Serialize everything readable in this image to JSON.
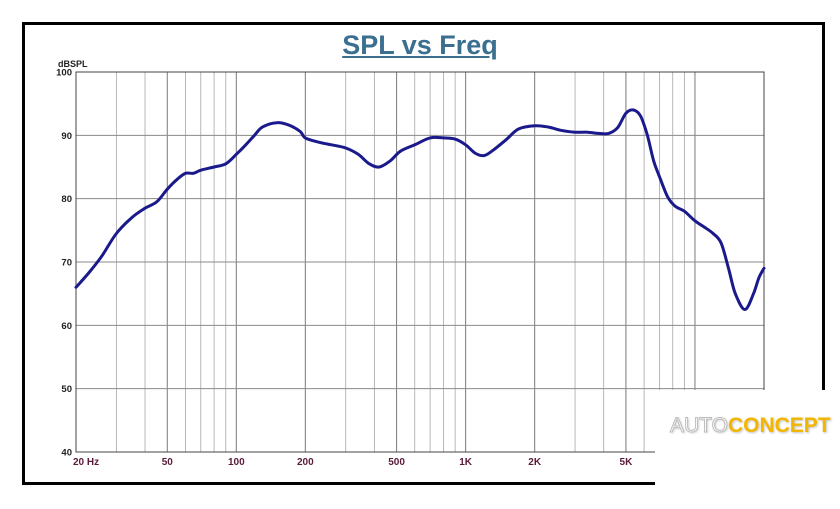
{
  "chart_data": {
    "type": "line",
    "title": "SPL vs Freq",
    "ylabel": "dBSPL",
    "xlabel": "",
    "x_scale": "log",
    "xlim": [
      20,
      20000
    ],
    "ylim": [
      40,
      100
    ],
    "y_ticks": [
      40,
      50,
      60,
      70,
      80,
      90,
      100
    ],
    "x_ticks": [
      {
        "value": 20,
        "label": "20  Hz"
      },
      {
        "value": 50,
        "label": "50"
      },
      {
        "value": 100,
        "label": "100"
      },
      {
        "value": 200,
        "label": "200"
      },
      {
        "value": 500,
        "label": "500"
      },
      {
        "value": 1000,
        "label": "1K"
      },
      {
        "value": 2000,
        "label": "2K"
      },
      {
        "value": 5000,
        "label": "5K"
      }
    ],
    "grid": true,
    "series": [
      {
        "color": "#1a1a8c",
        "x": [
          20,
          23,
          26,
          30,
          35,
          40,
          45,
          50,
          55,
          60,
          65,
          70,
          80,
          90,
          100,
          110,
          120,
          130,
          150,
          170,
          190,
          200,
          230,
          260,
          300,
          340,
          380,
          420,
          470,
          520,
          600,
          700,
          800,
          900,
          1000,
          1100,
          1200,
          1300,
          1500,
          1700,
          2000,
          2300,
          2600,
          3000,
          3400,
          3800,
          4200,
          4600,
          5000,
          5400,
          5800,
          6200,
          6600,
          7000,
          7600,
          8200,
          9000,
          10000,
          11000,
          12000,
          13000,
          14000,
          15000,
          16500,
          18000,
          19000,
          20000
        ],
        "y": [
          66,
          68.5,
          71,
          74.5,
          77,
          78.5,
          79.5,
          81.5,
          83,
          84,
          84,
          84.5,
          85,
          85.5,
          87,
          88.5,
          90,
          91.3,
          92,
          91.6,
          90.6,
          89.6,
          88.9,
          88.5,
          88,
          87,
          85.5,
          85,
          86,
          87.5,
          88.5,
          89.6,
          89.6,
          89.4,
          88.5,
          87.2,
          86.8,
          87.5,
          89.3,
          91,
          91.5,
          91.3,
          90.8,
          90.5,
          90.5,
          90.3,
          90.3,
          91.2,
          93.5,
          94,
          93,
          90,
          86,
          83.5,
          80.3,
          78.8,
          78,
          76.5,
          75.5,
          74.5,
          73,
          69,
          65,
          62.5,
          65,
          67.5,
          69
        ]
      }
    ]
  },
  "watermark": {
    "part1": "AUTO",
    "part2": "CONCEPT",
    "color_part1": "#ffffff",
    "color_part2": "#f3b600"
  }
}
